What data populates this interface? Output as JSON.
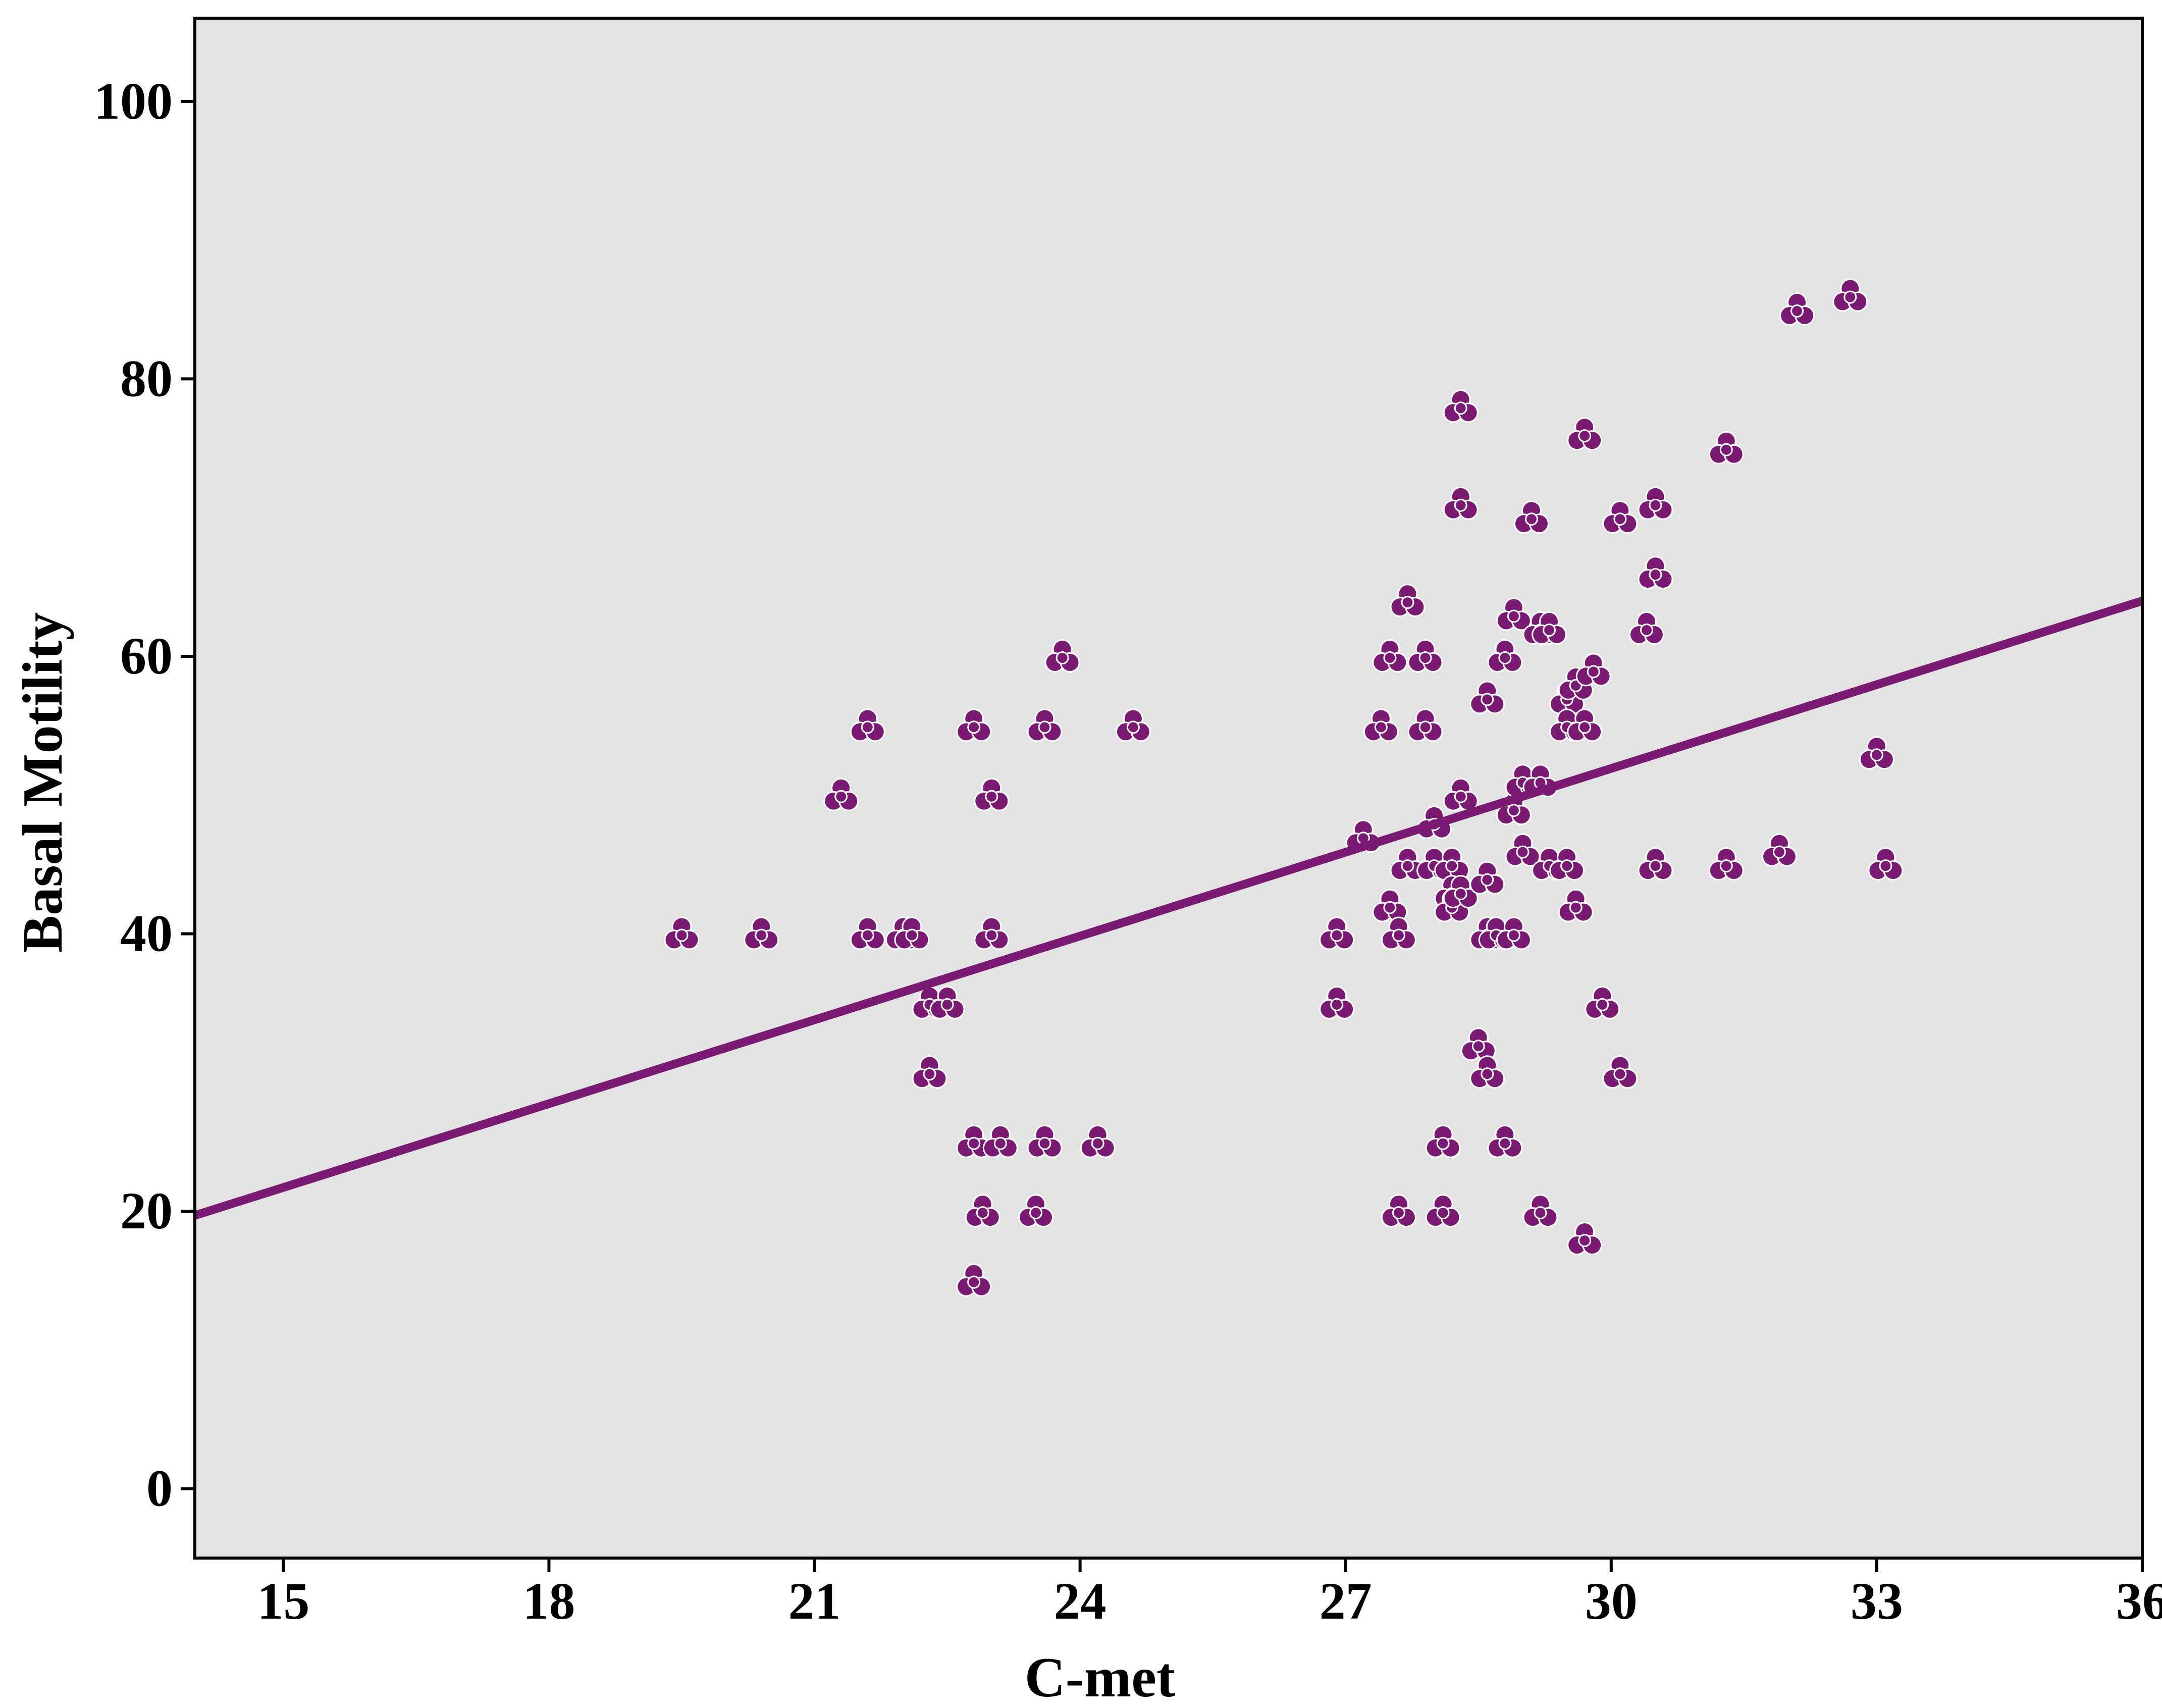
{
  "chart_data": {
    "type": "scatter",
    "title": "",
    "xlabel": "C-met",
    "ylabel": "Basal Motility",
    "xlim": [
      14,
      36
    ],
    "ylim": [
      -5,
      106
    ],
    "x_ticks": [
      "15",
      "18",
      "21",
      "24",
      "27",
      "30",
      "33",
      "36"
    ],
    "y_ticks": [
      "0",
      "20",
      "40",
      "60",
      "80",
      "100"
    ],
    "grid": false,
    "legend": "none",
    "marker": "trefoil",
    "colors": {
      "plot_background": "#e3e3e3",
      "series": "#7a1a73",
      "fit_line": "#7a1a73"
    },
    "fit_line": {
      "x": [
        14,
        36
      ],
      "y": [
        19.7,
        64.0
      ]
    },
    "series": [
      {
        "points": [
          [
            19.5,
            40
          ],
          [
            20.4,
            40
          ],
          [
            21.3,
            50
          ],
          [
            21.6,
            55
          ],
          [
            21.6,
            40
          ],
          [
            22.0,
            40
          ],
          [
            22.1,
            40
          ],
          [
            22.3,
            35
          ],
          [
            22.5,
            35
          ],
          [
            22.3,
            30
          ],
          [
            22.8,
            55
          ],
          [
            22.8,
            25
          ],
          [
            22.9,
            20
          ],
          [
            22.8,
            15
          ],
          [
            23.0,
            50
          ],
          [
            23.0,
            40
          ],
          [
            23.1,
            25
          ],
          [
            23.6,
            55
          ],
          [
            23.6,
            25
          ],
          [
            23.5,
            20
          ],
          [
            23.8,
            60
          ],
          [
            24.2,
            25
          ],
          [
            24.6,
            55
          ],
          [
            26.9,
            40
          ],
          [
            26.9,
            35
          ],
          [
            27.2,
            47
          ],
          [
            27.5,
            60
          ],
          [
            27.4,
            55
          ],
          [
            27.5,
            42
          ],
          [
            27.6,
            40
          ],
          [
            27.6,
            20
          ],
          [
            27.7,
            64
          ],
          [
            27.7,
            45
          ],
          [
            27.9,
            60
          ],
          [
            27.9,
            55
          ],
          [
            28.0,
            48
          ],
          [
            28.0,
            45
          ],
          [
            28.2,
            45
          ],
          [
            28.2,
            43
          ],
          [
            28.2,
            42
          ],
          [
            28.1,
            25
          ],
          [
            28.1,
            20
          ],
          [
            28.3,
            78
          ],
          [
            28.3,
            71
          ],
          [
            28.3,
            50
          ],
          [
            28.3,
            43
          ],
          [
            28.5,
            32
          ],
          [
            28.6,
            57
          ],
          [
            28.6,
            44
          ],
          [
            28.6,
            40
          ],
          [
            28.6,
            30
          ],
          [
            28.7,
            40
          ],
          [
            28.8,
            60
          ],
          [
            28.8,
            25
          ],
          [
            28.9,
            63
          ],
          [
            28.9,
            49
          ],
          [
            28.9,
            40
          ],
          [
            29.0,
            51
          ],
          [
            29.0,
            46
          ],
          [
            29.1,
            70
          ],
          [
            29.2,
            51
          ],
          [
            29.2,
            62
          ],
          [
            29.3,
            62
          ],
          [
            29.3,
            45
          ],
          [
            29.2,
            20
          ],
          [
            29.5,
            57
          ],
          [
            29.5,
            55
          ],
          [
            29.5,
            45
          ],
          [
            29.6,
            58
          ],
          [
            29.6,
            42
          ],
          [
            29.7,
            76
          ],
          [
            29.7,
            55
          ],
          [
            29.7,
            18
          ],
          [
            29.8,
            59
          ],
          [
            29.9,
            35
          ],
          [
            30.1,
            70
          ],
          [
            30.1,
            30
          ],
          [
            30.4,
            62
          ],
          [
            30.5,
            71
          ],
          [
            30.5,
            66
          ],
          [
            30.5,
            45
          ],
          [
            31.3,
            75
          ],
          [
            31.3,
            45
          ],
          [
            31.9,
            46
          ],
          [
            32.1,
            85
          ],
          [
            32.7,
            86
          ],
          [
            33.0,
            53
          ],
          [
            33.1,
            45
          ]
        ]
      }
    ]
  }
}
